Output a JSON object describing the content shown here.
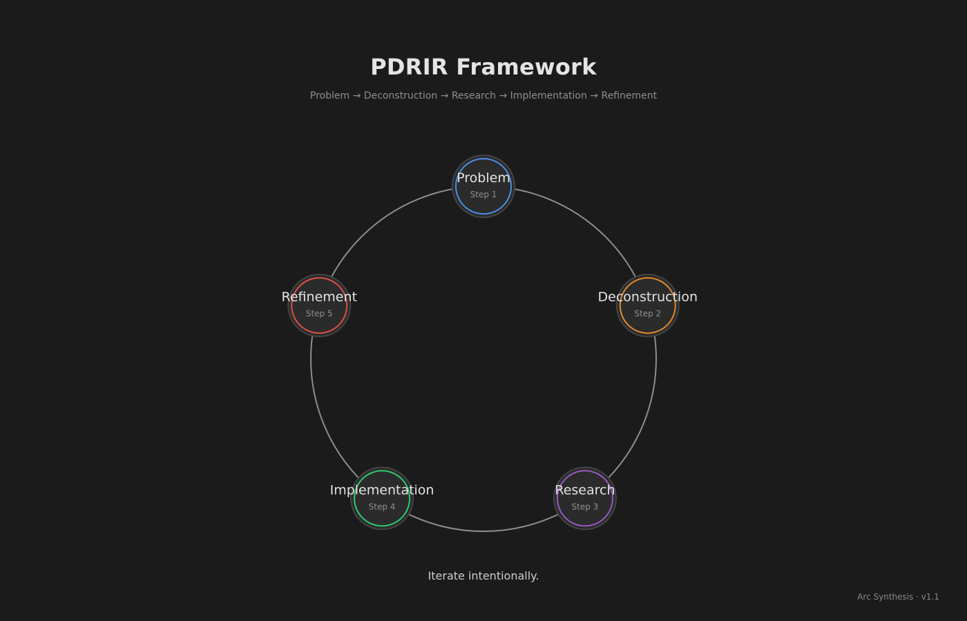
{
  "title": "PDRIR Framework",
  "subtitle": "Problem → Deconstruction → Research → Implementation → Refinement",
  "cycle": {
    "ring_color": "#8e8e8e",
    "node_fill": "#2b2b2b",
    "node_halo": "#444444",
    "nodes": [
      {
        "label": "Problem",
        "step": "Step 1",
        "color": "#4a8fe7"
      },
      {
        "label": "Deconstruction",
        "step": "Step 2",
        "color": "#e38a2e"
      },
      {
        "label": "Research",
        "step": "Step 3",
        "color": "#9b59c6"
      },
      {
        "label": "Implementation",
        "step": "Step 4",
        "color": "#2ecc71"
      },
      {
        "label": "Refinement",
        "step": "Step 5",
        "color": "#e05243"
      }
    ]
  },
  "tagline": "Iterate intentionally.",
  "footer": "Arc Synthesis · v1.1"
}
